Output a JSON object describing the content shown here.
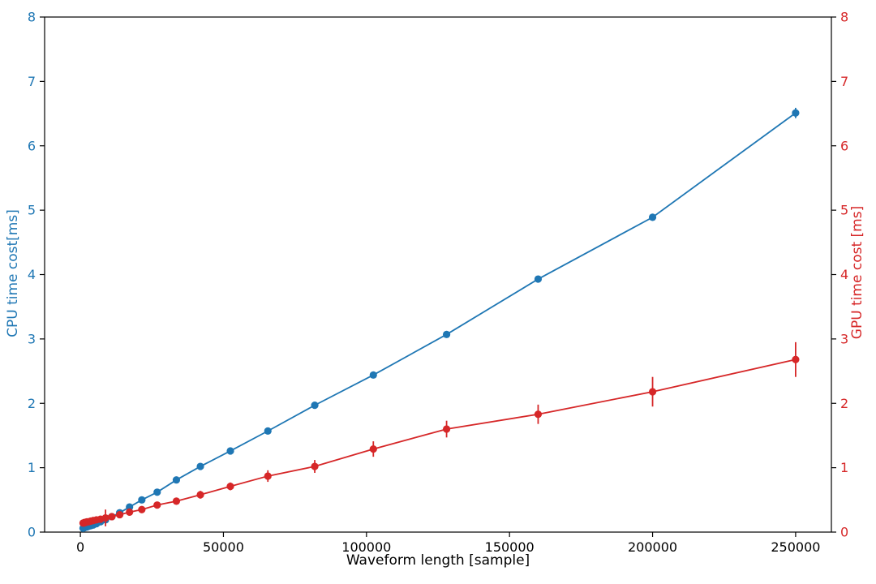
{
  "chart_data": {
    "type": "line",
    "title": "",
    "xlabel": "Waveform length [sample]",
    "ylabel_left": "CPU time cost[ms]",
    "ylabel_right": "GPU time cost [ms]",
    "xlim": [
      -12500,
      262500
    ],
    "ylim_left": [
      0,
      8
    ],
    "ylim_right": [
      0,
      8
    ],
    "x_ticks": [
      0,
      50000,
      100000,
      150000,
      200000,
      250000
    ],
    "x_tick_labels": [
      "0",
      "50000",
      "100000",
      "150000",
      "200000",
      "250000"
    ],
    "y_ticks_left": [
      0,
      1,
      2,
      3,
      4,
      5,
      6,
      7,
      8
    ],
    "y_tick_labels_left": [
      "0",
      "1",
      "2",
      "3",
      "4",
      "5",
      "6",
      "7",
      "8"
    ],
    "y_ticks_right": [
      0,
      1,
      2,
      3,
      4,
      5,
      6,
      7,
      8
    ],
    "y_tick_labels_right": [
      "0",
      "1",
      "2",
      "3",
      "4",
      "5",
      "6",
      "7",
      "8"
    ],
    "grid": false,
    "legend": null,
    "colors": {
      "cpu": "#1f77b4",
      "gpu": "#d62728",
      "axis": "#000000"
    },
    "x": [
      944,
      1181,
      1476,
      1845,
      2306,
      2882,
      3603,
      4504,
      5630,
      7037,
      8796,
      10995,
      13744,
      17180,
      21475,
      26843,
      33554,
      41943,
      52429,
      65536,
      81920,
      102400,
      128000,
      160000,
      200000,
      250000
    ],
    "series": [
      {
        "name": "CPU time",
        "axis": "left",
        "marker": "circle",
        "values": [
          0.06,
          0.07,
          0.07,
          0.08,
          0.08,
          0.09,
          0.1,
          0.11,
          0.13,
          0.16,
          0.19,
          0.24,
          0.3,
          0.39,
          0.5,
          0.62,
          0.81,
          1.02,
          1.26,
          1.57,
          1.97,
          2.44,
          3.07,
          3.93,
          4.89,
          6.51
        ],
        "errors": [
          0.01,
          0.01,
          0.01,
          0.01,
          0.01,
          0.01,
          0.01,
          0.01,
          0.01,
          0.01,
          0.02,
          0.02,
          0.02,
          0.02,
          0.02,
          0.02,
          0.03,
          0.03,
          0.03,
          0.03,
          0.03,
          0.04,
          0.04,
          0.04,
          0.05,
          0.08
        ]
      },
      {
        "name": "GPU time",
        "axis": "right",
        "marker": "circle",
        "values": [
          0.14,
          0.14,
          0.15,
          0.15,
          0.16,
          0.16,
          0.17,
          0.18,
          0.19,
          0.2,
          0.22,
          0.24,
          0.27,
          0.31,
          0.35,
          0.42,
          0.48,
          0.58,
          0.71,
          0.87,
          1.02,
          1.29,
          1.6,
          1.83,
          2.18,
          2.68
        ],
        "errors": [
          0.02,
          0.02,
          0.02,
          0.02,
          0.02,
          0.02,
          0.03,
          0.03,
          0.03,
          0.03,
          0.13,
          0.04,
          0.04,
          0.04,
          0.05,
          0.05,
          0.05,
          0.06,
          0.06,
          0.09,
          0.1,
          0.12,
          0.13,
          0.15,
          0.23,
          0.27
        ]
      }
    ]
  }
}
